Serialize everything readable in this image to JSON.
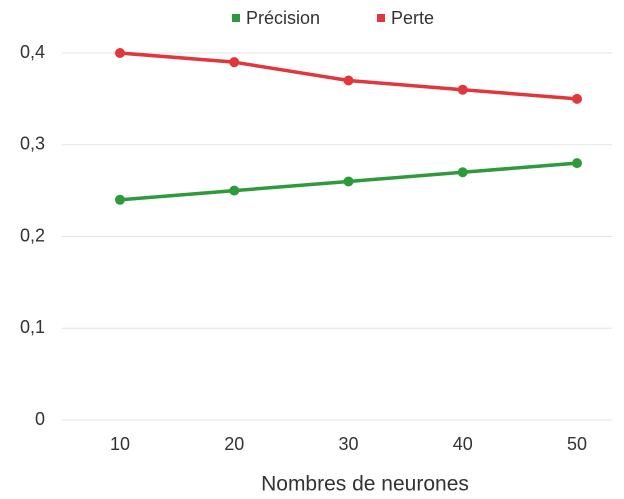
{
  "chart_data": {
    "type": "line",
    "categories": [
      "10",
      "20",
      "30",
      "40",
      "50"
    ],
    "series": [
      {
        "name": "Précision",
        "color": "#2e9a3c",
        "values": [
          0.24,
          0.25,
          0.26,
          0.27,
          0.28
        ]
      },
      {
        "name": "Perte",
        "color": "#e0363c",
        "values": [
          0.4,
          0.39,
          0.37,
          0.36,
          0.35
        ]
      }
    ],
    "xlabel": "Nombres de neurones",
    "ylim": [
      0,
      0.4
    ],
    "yticks": [
      0,
      {
        "value": 0.1,
        "label": "0,1"
      },
      {
        "value": 0.2,
        "label": "0,2"
      },
      {
        "value": 0.3,
        "label": "0,3"
      },
      {
        "value": 0.4,
        "label": "0,4"
      }
    ],
    "grid": true,
    "legend": "top"
  }
}
